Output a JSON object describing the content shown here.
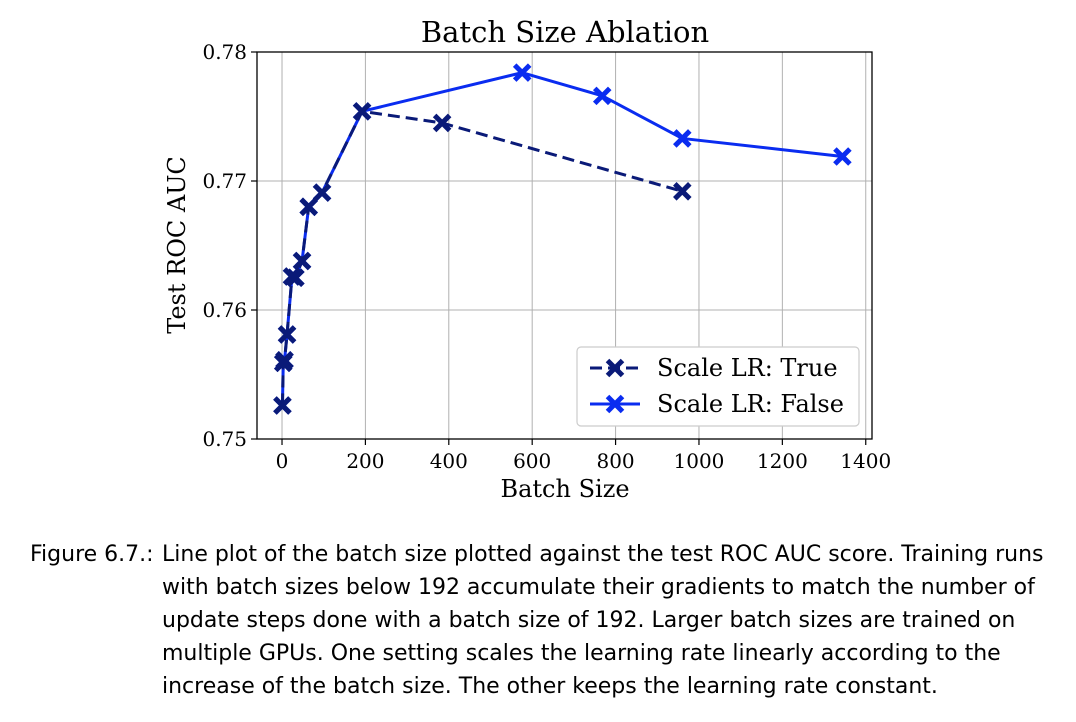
{
  "chart_data": {
    "type": "line",
    "title": "Batch Size Ablation",
    "xlabel": "Batch Size",
    "ylabel": "Test ROC AUC",
    "xlim": [
      -60,
      1415
    ],
    "ylim": [
      0.75,
      0.78
    ],
    "xticks": [
      0,
      200,
      400,
      600,
      800,
      1000,
      1200,
      1400
    ],
    "yticks": [
      0.75,
      0.76,
      0.77,
      0.78
    ],
    "ytick_labels": [
      "0.75",
      "0.76",
      "0.77",
      "0.78"
    ],
    "grid": true,
    "legend_position": "lower-right",
    "series": [
      {
        "name": "Scale LR: True",
        "color": "#0a1a78",
        "linestyle": "dashed",
        "marker": "X",
        "x": [
          1,
          3,
          6,
          12,
          24,
          32,
          48,
          64,
          96,
          192,
          384,
          960
        ],
        "y": [
          0.7526,
          0.7559,
          0.7561,
          0.7581,
          0.7626,
          0.7625,
          0.7638,
          0.768,
          0.7691,
          0.7754,
          0.7745,
          0.7692
        ]
      },
      {
        "name": "Scale LR: False",
        "color": "#0a2cf0",
        "linestyle": "solid",
        "marker": "X",
        "x": [
          1,
          3,
          6,
          12,
          24,
          32,
          48,
          64,
          96,
          192,
          576,
          768,
          960,
          1344
        ],
        "y": [
          0.7526,
          0.7559,
          0.7561,
          0.7581,
          0.7626,
          0.7625,
          0.7638,
          0.768,
          0.7691,
          0.7754,
          0.7784,
          0.7766,
          0.7733,
          0.7719
        ]
      }
    ]
  },
  "caption": {
    "label": "Figure 6.7.:",
    "text": "Line plot of the batch size plotted against the test ROC AUC score. Training runs with batch sizes below 192 accumulate their gradients to match the number of update steps done with a batch size of 192. Larger batch sizes are trained on multiple GPUs. One setting scales the learning rate linearly according to the increase of the batch size. The other keeps the learning rate constant."
  }
}
